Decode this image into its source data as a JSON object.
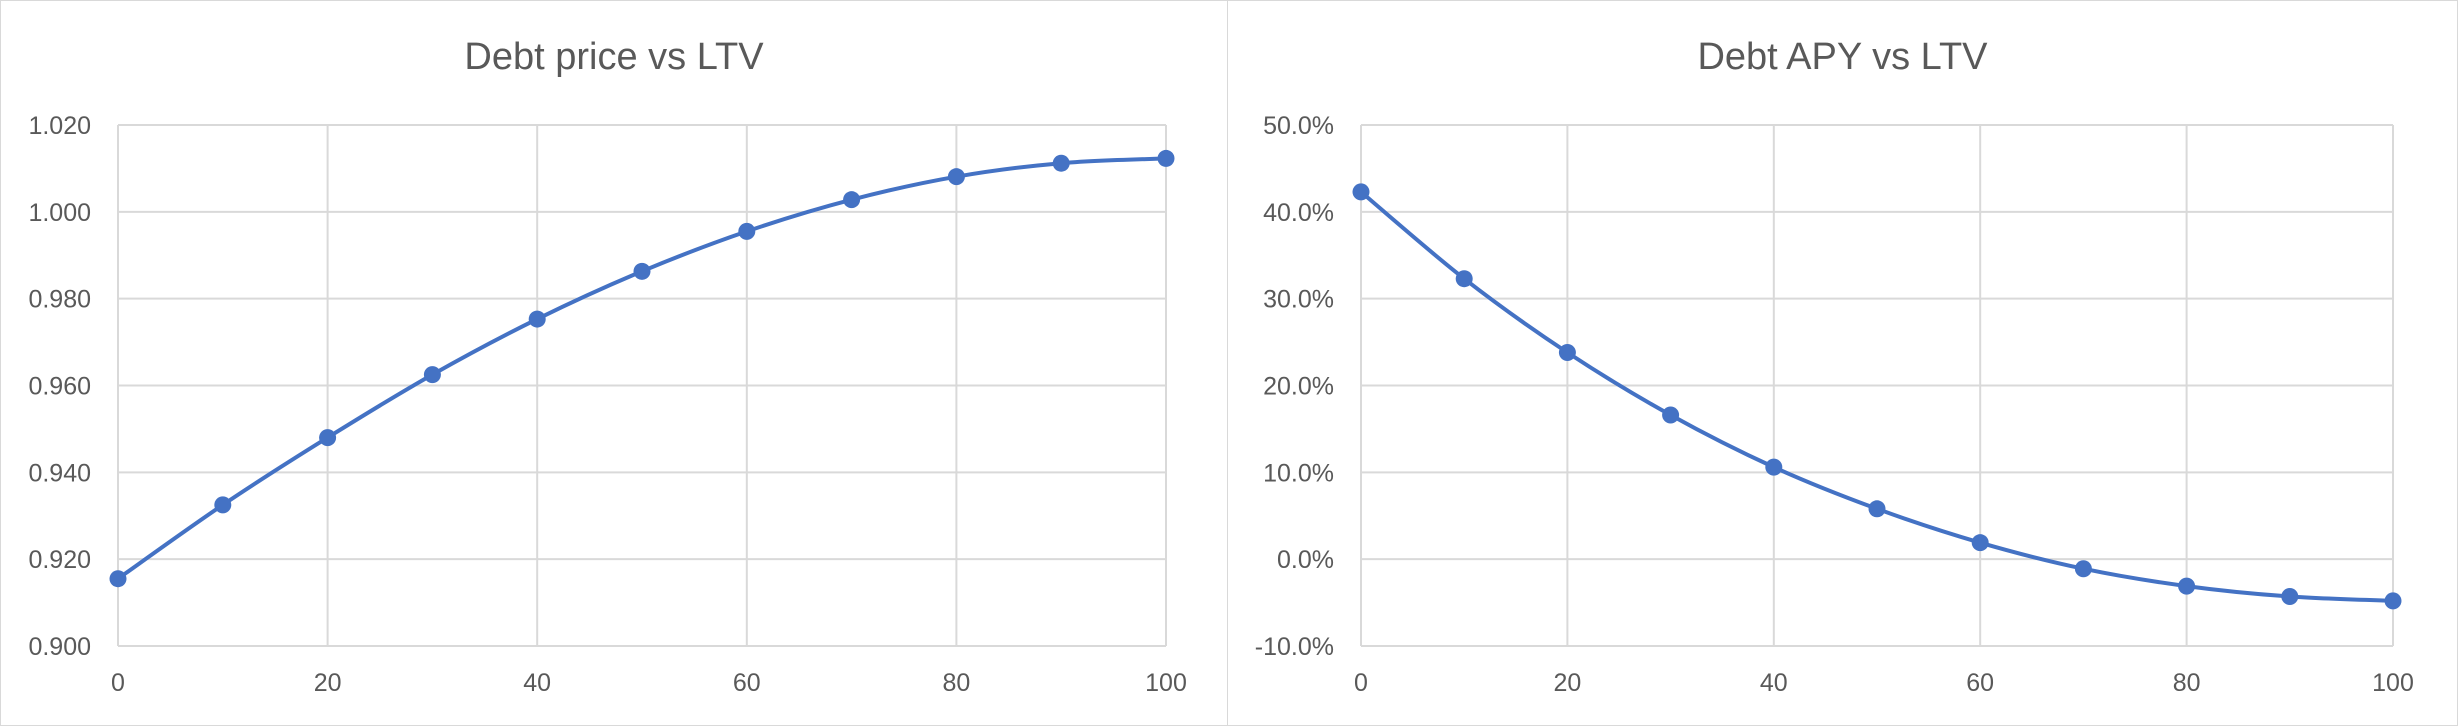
{
  "chart_data": [
    {
      "type": "line",
      "title": "Debt price vs LTV",
      "xlabel": "",
      "ylabel": "",
      "x": [
        0,
        10,
        20,
        30,
        40,
        50,
        60,
        70,
        80,
        90,
        100
      ],
      "xlim": [
        0,
        100
      ],
      "x_ticks": [
        0,
        20,
        40,
        60,
        80,
        100
      ],
      "x_tick_labels": [
        "0",
        "20",
        "40",
        "60",
        "80",
        "100"
      ],
      "ylim": [
        0.9,
        1.02
      ],
      "y_ticks": [
        0.9,
        0.92,
        0.94,
        0.96,
        0.98,
        1.0,
        1.02
      ],
      "y_tick_labels": [
        "0.900",
        "0.920",
        "0.940",
        "0.960",
        "0.980",
        "1.000",
        "1.020"
      ],
      "series": [
        {
          "values": [
            0.9155,
            0.9325,
            0.948,
            0.9625,
            0.9753,
            0.9863,
            0.9955,
            1.0028,
            1.0081,
            1.0112,
            1.0123
          ]
        }
      ],
      "grid": true,
      "legend": "none",
      "line_color": "#4472c4"
    },
    {
      "type": "line",
      "title": "Debt APY vs LTV",
      "xlabel": "",
      "ylabel": "",
      "x": [
        0,
        10,
        20,
        30,
        40,
        50,
        60,
        70,
        80,
        90,
        100
      ],
      "xlim": [
        0,
        100
      ],
      "x_ticks": [
        0,
        20,
        40,
        60,
        80,
        100
      ],
      "x_tick_labels": [
        "0",
        "20",
        "40",
        "60",
        "80",
        "100"
      ],
      "ylim": [
        -10,
        50
      ],
      "y_ticks": [
        -10,
        0,
        10,
        20,
        30,
        40,
        50
      ],
      "y_tick_labels": [
        "-10.0%",
        "0.0%",
        "10.0%",
        "20.0%",
        "30.0%",
        "40.0%",
        "50.0%"
      ],
      "series": [
        {
          "values": [
            42.3,
            32.3,
            23.8,
            16.6,
            10.6,
            5.8,
            1.9,
            -1.1,
            -3.1,
            -4.3,
            -4.8
          ]
        }
      ],
      "grid": true,
      "legend": "none",
      "line_color": "#4472c4"
    }
  ]
}
